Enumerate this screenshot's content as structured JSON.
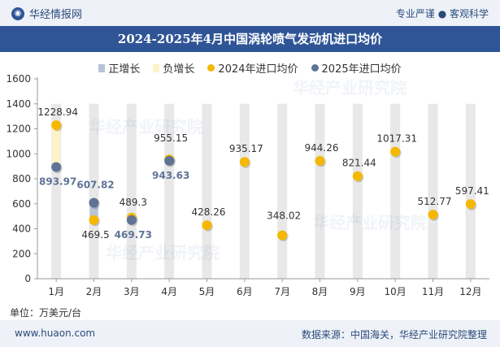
{
  "header": {
    "brand": "华经情报网",
    "tagline": "专业严谨 ● 客观科学"
  },
  "watermark": "华经产业研究院",
  "footer": {
    "url": "www.huaon.com",
    "source": "数据来源：中国海关，华经产业研究院整理"
  },
  "unit_label": "单位：万美元/台",
  "colors": {
    "positive_bar": "#b7c3d6",
    "negative_bar": "#fdf2c8",
    "series_2024": "#f5b800",
    "series_2025": "#5f7396",
    "grid_band": "#e8e8e8",
    "title_bg": "#2f5597"
  },
  "chart_data": {
    "type": "line",
    "title": "2024-2025年4月中国涡轮喷气发动机进口均价",
    "categories": [
      "1月",
      "2月",
      "3月",
      "4月",
      "5月",
      "6月",
      "7月",
      "8月",
      "9月",
      "10月",
      "11月",
      "12月"
    ],
    "ylim": [
      0,
      1600
    ],
    "yticks": [
      0,
      200,
      400,
      600,
      800,
      1000,
      1200,
      1400,
      1600
    ],
    "legend": [
      {
        "name": "正增长",
        "kind": "bar",
        "color": "#b7c3d6"
      },
      {
        "name": "负增长",
        "kind": "bar",
        "color": "#fdf2c8"
      },
      {
        "name": "2024年进口均价",
        "kind": "dot",
        "color": "#f5b800"
      },
      {
        "name": "2025年进口均价",
        "kind": "dot",
        "color": "#5f7396"
      }
    ],
    "series": [
      {
        "name": "2024年进口均价",
        "values": [
          1228.94,
          469.5,
          489.3,
          955.15,
          428.26,
          935.17,
          348.02,
          944.26,
          821.44,
          1017.31,
          512.77,
          597.41
        ]
      },
      {
        "name": "2025年进口均价",
        "values": [
          893.97,
          607.82,
          469.73,
          943.63,
          null,
          null,
          null,
          null,
          null,
          null,
          null,
          null
        ]
      }
    ],
    "labels_2024": [
      "1228.94",
      "469.5",
      "489.3",
      "955.15",
      "428.26",
      "935.17",
      "348.02",
      "944.26",
      "821.44",
      "1017.31",
      "512.77",
      "597.41"
    ],
    "labels_2025": [
      "893.97",
      "607.82",
      "469.73",
      "943.63"
    ]
  }
}
